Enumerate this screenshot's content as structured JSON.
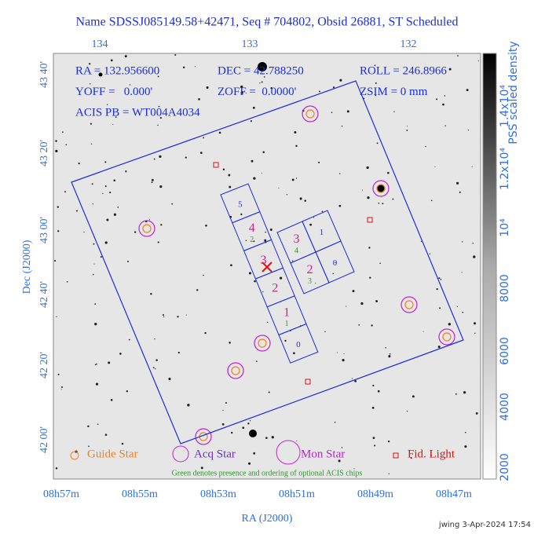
{
  "title": "Name SDSSJ085149.58+42471, Seq # 704802, Obsid 26881, ST Scheduled",
  "top_axis": {
    "labels": [
      "134",
      "133",
      "132"
    ]
  },
  "ra_axis": {
    "title": "RA (J2000)",
    "labels": [
      "08h57m",
      "08h55m",
      "08h53m",
      "08h51m",
      "08h49m",
      "08h47m"
    ]
  },
  "dec_axis": {
    "title": "Dec (J2000)",
    "labels": [
      "43 40'",
      "43 20'",
      "43 00'",
      "42 40'",
      "42 20'",
      "42 00'"
    ]
  },
  "info": [
    [
      "RA = 132.956600",
      "DEC = 42.788250",
      "ROLL = 246.8966"
    ],
    [
      "YOFF =   0.000'",
      "ZOFF =  0.0000'",
      "ZSIM = 0 mm"
    ],
    [
      "ACIS PB = WT004A4034"
    ]
  ],
  "colorbar": {
    "title": "PSS scaled density",
    "labels": [
      "1.4x10⁴",
      "1.2x10⁴",
      "10⁴",
      "8000",
      "6000",
      "4000",
      "2000"
    ]
  },
  "chips_left": [
    {
      "id": "5"
    },
    {
      "id": "4",
      "order": "2"
    },
    {
      "id": "3"
    },
    {
      "id": "2"
    },
    {
      "id": "1",
      "order": "1"
    },
    {
      "id": "0"
    }
  ],
  "chips_right": [
    {
      "id": "3",
      "order": "4"
    },
    {
      "id": "1"
    },
    {
      "id": "2",
      "order": "3"
    },
    {
      "id": "0"
    }
  ],
  "legend": [
    "Guide Star",
    "Acq Star",
    "Mon Star",
    "Fid. Light"
  ],
  "note": "Green denotes presence and ordering of optional ACIS chips",
  "footer": "jwing  3-Apr-2024 17:54"
}
